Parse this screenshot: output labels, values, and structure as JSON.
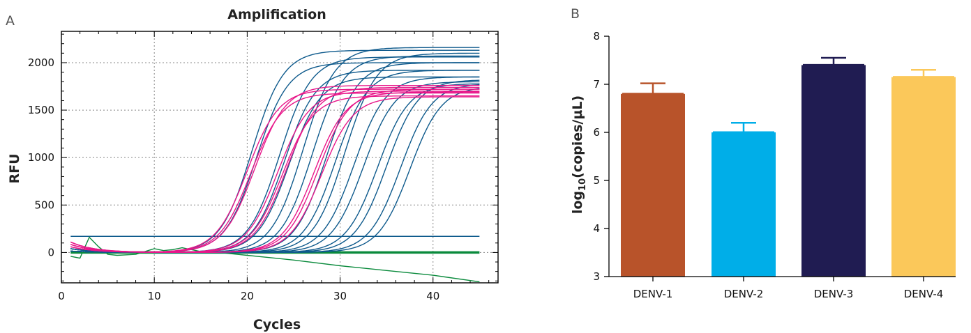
{
  "chart_data": [
    {
      "panel": "A",
      "type": "line",
      "title": "Amplification",
      "xlabel": "Cycles",
      "ylabel": "RFU",
      "xlim": [
        0,
        47
      ],
      "ylim": [
        -320,
        2330
      ],
      "xticks": [
        0,
        10,
        20,
        30,
        40
      ],
      "yticks": [
        0,
        500,
        1000,
        1500,
        2000
      ],
      "grid": true,
      "x_range": [
        1,
        45
      ],
      "threshold": 170,
      "colors": {
        "blue": "#0e5a8c",
        "magenta": "#e8178a",
        "green": "#0a8a3c"
      },
      "blue_curves": [
        {
          "midpoint": 20.5,
          "plateau": 2130
        },
        {
          "midpoint": 21.0,
          "plateau": 2000
        },
        {
          "midpoint": 23.5,
          "plateau": 2060
        },
        {
          "midpoint": 24.0,
          "plateau": 1920
        },
        {
          "midpoint": 24.5,
          "plateau": 1850
        },
        {
          "midpoint": 26.0,
          "plateau": 2160
        },
        {
          "midpoint": 27.0,
          "plateau": 2070
        },
        {
          "midpoint": 28.5,
          "plateau": 2000
        },
        {
          "midpoint": 29.5,
          "plateau": 1920
        },
        {
          "midpoint": 30.5,
          "plateau": 2100
        },
        {
          "midpoint": 31.5,
          "plateau": 1850
        },
        {
          "midpoint": 32.5,
          "plateau": 1800
        },
        {
          "midpoint": 34.0,
          "plateau": 1780
        },
        {
          "midpoint": 35.0,
          "plateau": 1820
        },
        {
          "midpoint": 36.5,
          "plateau": 1780
        },
        {
          "midpoint": 37.5,
          "plateau": 1750
        }
      ],
      "magenta_curves": [
        {
          "midpoint": 20.0,
          "plateau": 1720
        },
        {
          "midpoint": 20.4,
          "plateau": 1680
        },
        {
          "midpoint": 20.8,
          "plateau": 1760
        },
        {
          "midpoint": 23.3,
          "plateau": 1700
        },
        {
          "midpoint": 23.8,
          "plateau": 1650
        },
        {
          "midpoint": 24.2,
          "plateau": 1740
        },
        {
          "midpoint": 27.2,
          "plateau": 1690
        },
        {
          "midpoint": 27.6,
          "plateau": 1720
        },
        {
          "midpoint": 28.0,
          "plateau": 1640
        }
      ],
      "green_negative_curve": {
        "x": [
          1,
          2,
          3,
          4,
          5,
          6,
          8,
          10,
          11,
          12,
          13,
          14,
          15,
          17,
          20,
          25,
          30,
          35,
          40,
          45
        ],
        "y": [
          -40,
          -60,
          160,
          60,
          -20,
          -30,
          -20,
          40,
          20,
          30,
          50,
          30,
          10,
          0,
          -30,
          -80,
          -140,
          -190,
          -240,
          -310
        ]
      }
    },
    {
      "panel": "B",
      "type": "bar",
      "ylabel_main": "log",
      "ylabel_sub": "10",
      "ylabel_rest": "(copies/µL)",
      "categories": [
        "DENV-1",
        "DENV-2",
        "DENV-3",
        "DENV-4"
      ],
      "values": [
        6.8,
        6.0,
        7.4,
        7.15
      ],
      "errors": [
        0.22,
        0.2,
        0.15,
        0.15
      ],
      "colors": [
        "#b8532a",
        "#00aee8",
        "#201c52",
        "#fbc85a"
      ],
      "ylim": [
        3,
        8
      ],
      "yticks": [
        3,
        4,
        5,
        6,
        7,
        8
      ]
    }
  ]
}
